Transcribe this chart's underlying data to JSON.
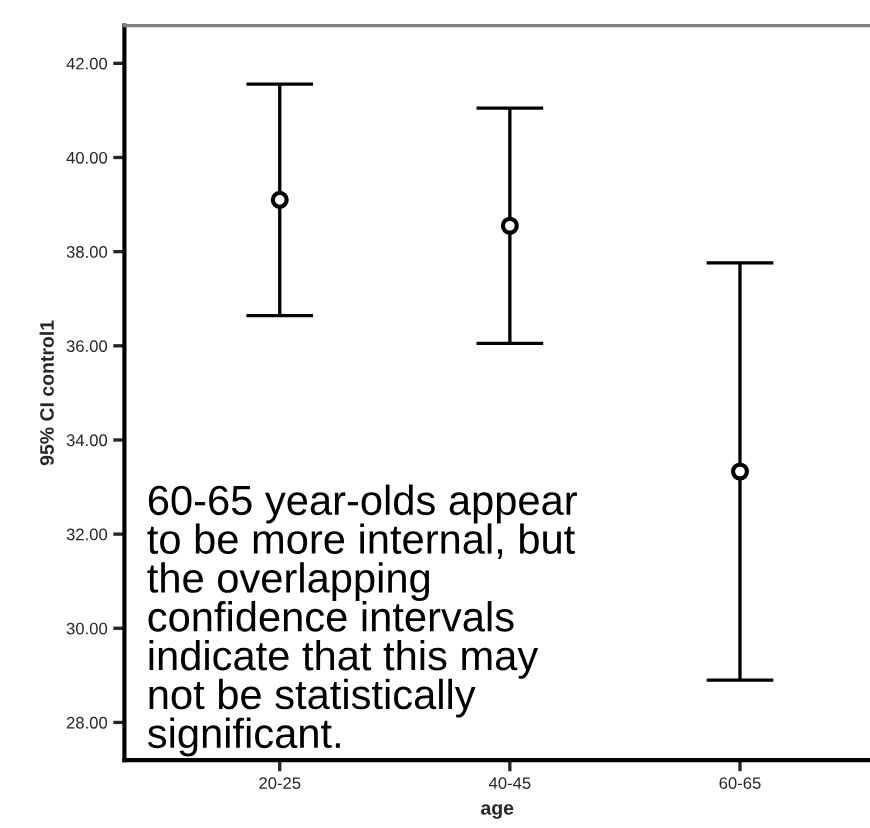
{
  "chart_data": {
    "type": "scatter",
    "xlabel": "age",
    "ylabel": "95% CI control1",
    "categories": [
      "20-25",
      "40-45",
      "60-65"
    ],
    "values": [
      39.1,
      38.55,
      33.33
    ],
    "errors": [
      2.46,
      2.5,
      4.43
    ],
    "color": "#000000",
    "marker": "circle",
    "ylim": [
      27.2,
      42.8
    ],
    "yticks": [
      {
        "value": 28,
        "label": "28.00"
      },
      {
        "value": 30,
        "label": "30.00"
      },
      {
        "value": 32,
        "label": "32.00"
      },
      {
        "value": 34,
        "label": "34.00"
      },
      {
        "value": 36,
        "label": "36.00"
      },
      {
        "value": 38,
        "label": "38.00"
      },
      {
        "value": 40,
        "label": "40.00"
      },
      {
        "value": 42,
        "label": "42.00"
      }
    ],
    "grid": false,
    "legend": false,
    "annotations": [
      "60-65 year-olds appear\nto be more internal, but\nthe overlapping\nconfidence intervals\nindicate that this may\nnot be statistically\nsignificant."
    ]
  }
}
